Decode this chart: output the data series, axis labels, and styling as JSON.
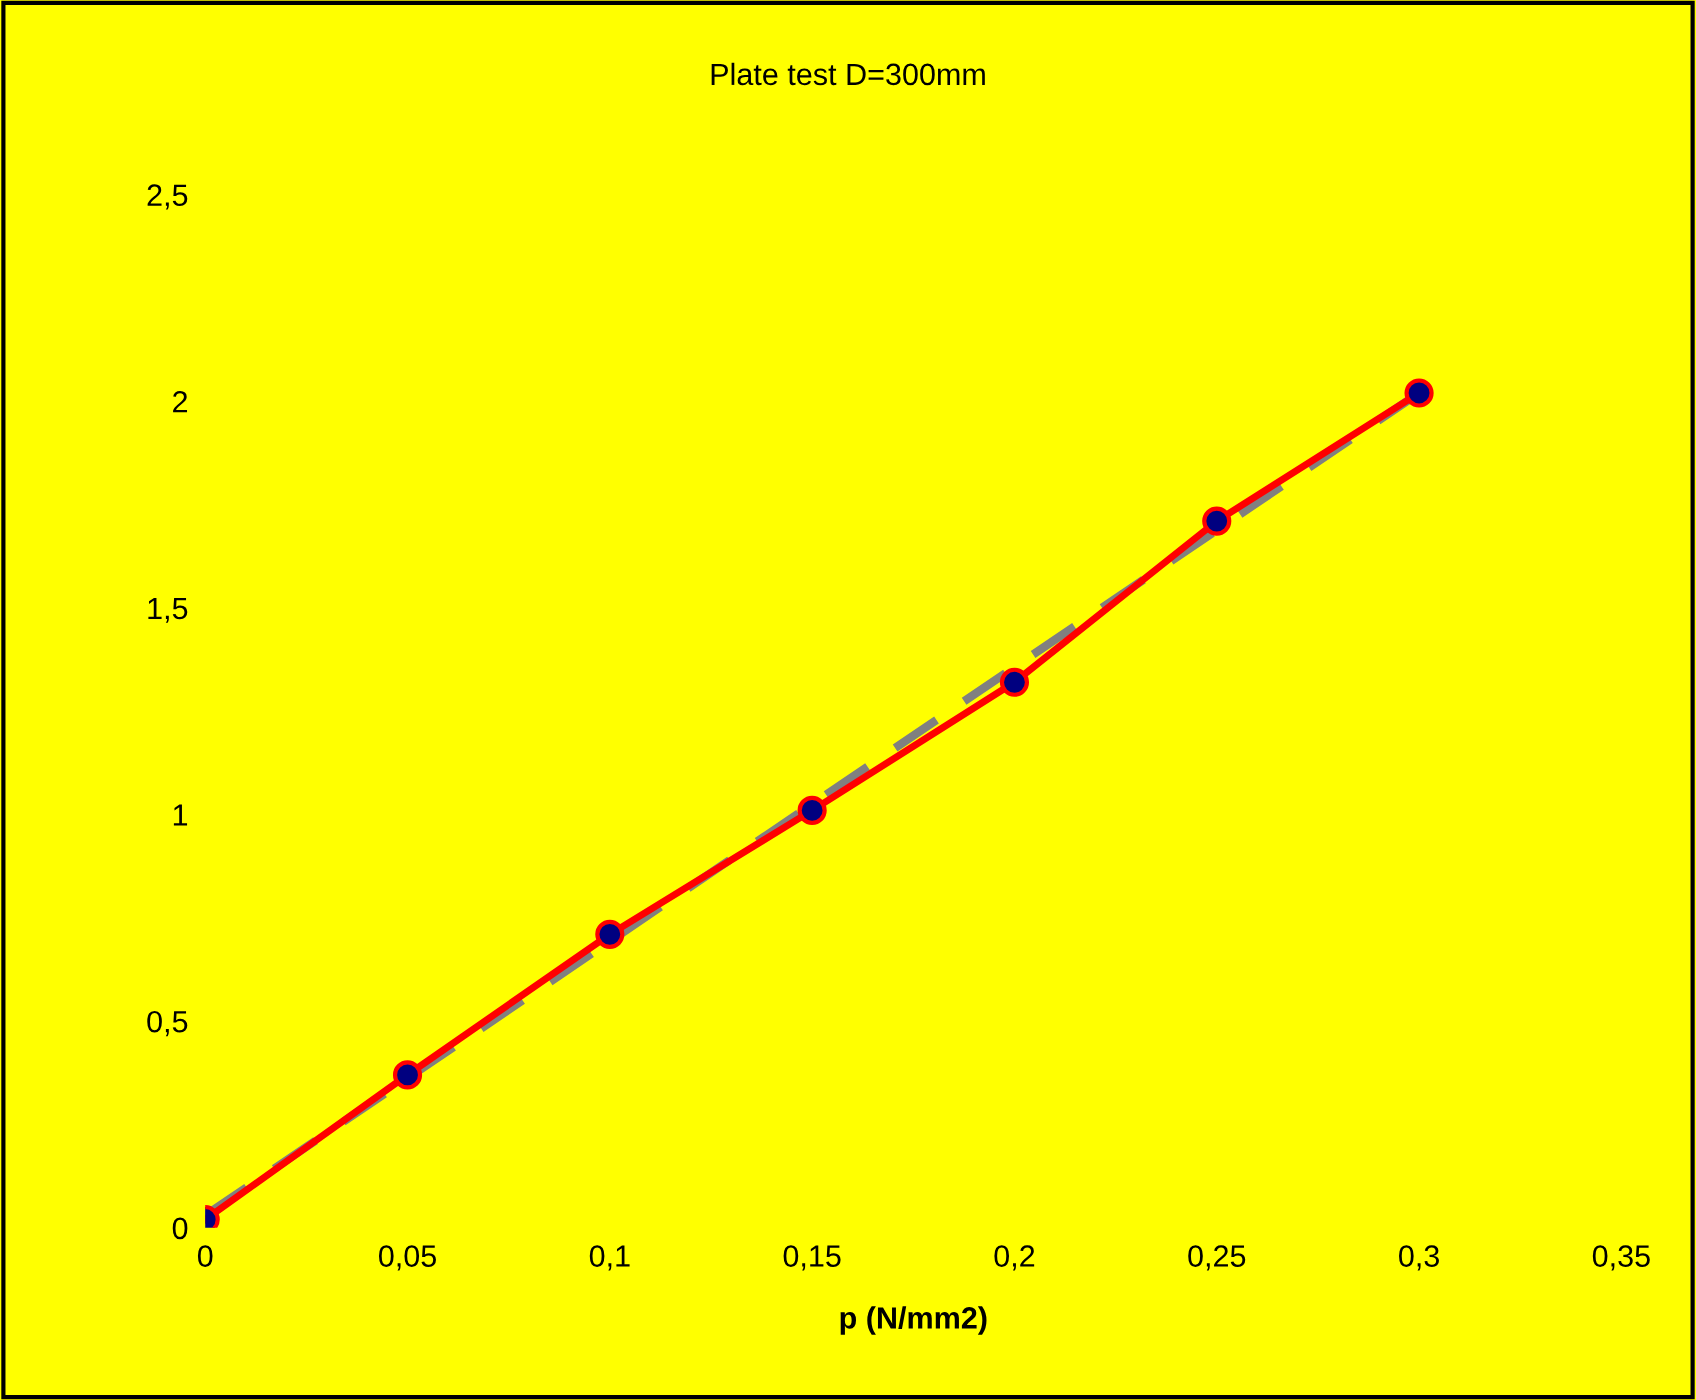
{
  "chart_data": {
    "type": "line",
    "title": "Plate test D=300mm",
    "xlabel": "p (N/mm2)",
    "xlim": [
      0,
      0.35
    ],
    "ylim": [
      0,
      2.5
    ],
    "xticks": [
      0,
      {
        "value": 0.05,
        "label": "0,05"
      },
      {
        "value": 0.1,
        "label": "0,1"
      },
      {
        "value": 0.15,
        "label": "0,15"
      },
      {
        "value": 0.2,
        "label": "0,2"
      },
      {
        "value": 0.25,
        "label": "0,25"
      },
      {
        "value": 0.3,
        "label": "0,3"
      },
      {
        "value": 0.35,
        "label": "0,35"
      }
    ],
    "yticks": [
      0,
      {
        "value": 0.5,
        "label": "0,5"
      },
      1,
      {
        "value": 1.5,
        "label": "1,5"
      },
      2,
      {
        "value": 2.5,
        "label": "2,5"
      }
    ],
    "grid": false,
    "legend": false,
    "marker": "circle",
    "line_style": "solid",
    "series": [
      {
        "color": "#ff0000",
        "x": [
          0,
          0.05,
          0.1,
          0.15,
          0.2,
          0.25,
          0.3
        ],
        "values": [
          0.02,
          0.37,
          0.71,
          1.01,
          1.32,
          1.71,
          2.02
        ]
      },
      {
        "color": "#808080",
        "line_style": "dashed",
        "marker": "none",
        "x": [
          0,
          0.3
        ],
        "values": [
          0.03,
          2.02
        ]
      }
    ]
  }
}
